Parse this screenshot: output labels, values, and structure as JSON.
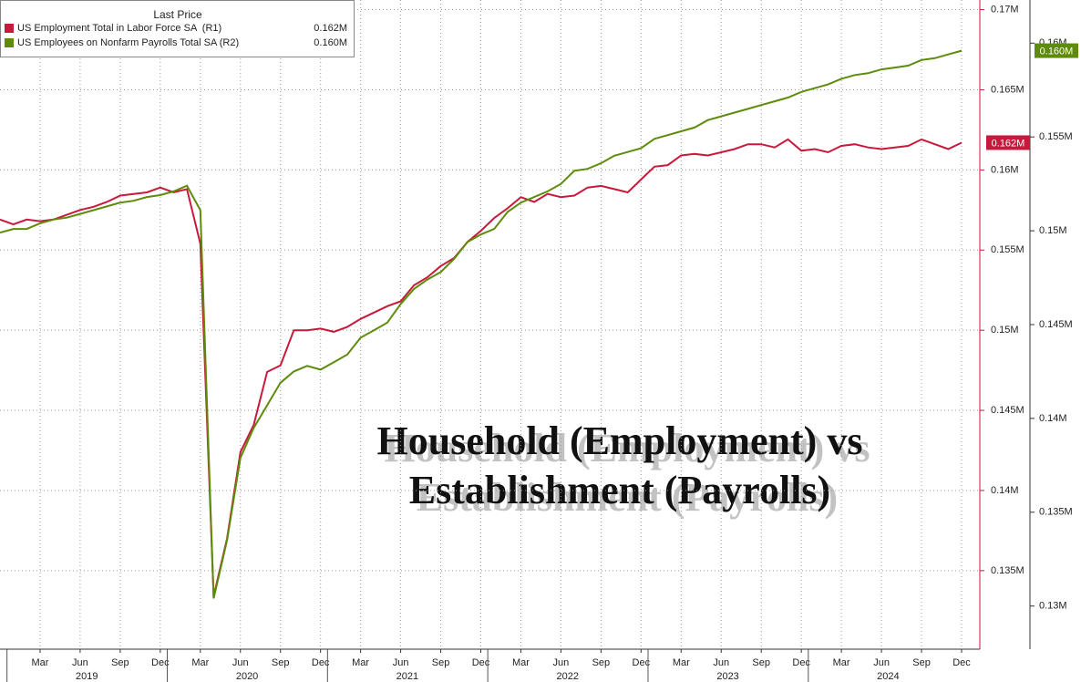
{
  "chart_data": {
    "type": "line",
    "legend_title": "Last Price",
    "annotation": [
      "Household (Employment) vs",
      "Establishment (Payrolls)"
    ],
    "x": [
      "2018-12",
      "2019-01",
      "2019-02",
      "2019-03",
      "2019-04",
      "2019-05",
      "2019-06",
      "2019-07",
      "2019-08",
      "2019-09",
      "2019-10",
      "2019-11",
      "2019-12",
      "2020-01",
      "2020-02",
      "2020-03",
      "2020-04",
      "2020-05",
      "2020-06",
      "2020-07",
      "2020-08",
      "2020-09",
      "2020-10",
      "2020-11",
      "2020-12",
      "2021-01",
      "2021-02",
      "2021-03",
      "2021-04",
      "2021-05",
      "2021-06",
      "2021-07",
      "2021-08",
      "2021-09",
      "2021-10",
      "2021-11",
      "2021-12",
      "2022-01",
      "2022-02",
      "2022-03",
      "2022-04",
      "2022-05",
      "2022-06",
      "2022-07",
      "2022-08",
      "2022-09",
      "2022-10",
      "2022-11",
      "2022-12",
      "2023-01",
      "2023-02",
      "2023-03",
      "2023-04",
      "2023-05",
      "2023-06",
      "2023-07",
      "2023-08",
      "2023-09",
      "2023-10",
      "2023-11",
      "2023-12",
      "2024-01",
      "2024-02",
      "2024-03",
      "2024-04",
      "2024-05",
      "2024-06",
      "2024-07",
      "2024-08",
      "2024-09",
      "2024-10",
      "2024-11",
      "2024-12"
    ],
    "xticks": [
      {
        "value": "2019-03",
        "label": "Mar"
      },
      {
        "value": "2019-06",
        "label": "Jun"
      },
      {
        "value": "2019-09",
        "label": "Sep"
      },
      {
        "value": "2019-12",
        "label": "Dec"
      },
      {
        "value": "2020-03",
        "label": "Mar"
      },
      {
        "value": "2020-06",
        "label": "Jun"
      },
      {
        "value": "2020-09",
        "label": "Sep"
      },
      {
        "value": "2020-12",
        "label": "Dec"
      },
      {
        "value": "2021-03",
        "label": "Mar"
      },
      {
        "value": "2021-06",
        "label": "Jun"
      },
      {
        "value": "2021-09",
        "label": "Sep"
      },
      {
        "value": "2021-12",
        "label": "Dec"
      },
      {
        "value": "2022-03",
        "label": "Mar"
      },
      {
        "value": "2022-06",
        "label": "Jun"
      },
      {
        "value": "2022-09",
        "label": "Sep"
      },
      {
        "value": "2022-12",
        "label": "Dec"
      },
      {
        "value": "2023-03",
        "label": "Mar"
      },
      {
        "value": "2023-06",
        "label": "Jun"
      },
      {
        "value": "2023-09",
        "label": "Sep"
      },
      {
        "value": "2023-12",
        "label": "Dec"
      },
      {
        "value": "2024-03",
        "label": "Mar"
      },
      {
        "value": "2024-06",
        "label": "Jun"
      },
      {
        "value": "2024-09",
        "label": "Sep"
      },
      {
        "value": "2024-12",
        "label": "Dec"
      }
    ],
    "years": [
      "2019",
      "2020",
      "2021",
      "2022",
      "2023",
      "2024"
    ],
    "ylim": [
      0.1301,
      0.1706
    ],
    "yticks": [
      {
        "value": 0.135,
        "label": "0.135M"
      },
      {
        "value": 0.14,
        "label": "0.14M"
      },
      {
        "value": 0.145,
        "label": "0.145M"
      },
      {
        "value": 0.15,
        "label": "0.15M"
      },
      {
        "value": 0.155,
        "label": "0.155M"
      },
      {
        "value": 0.16,
        "label": "0.16M"
      },
      {
        "value": 0.165,
        "label": "0.165M"
      },
      {
        "value": 0.17,
        "label": "0.17M"
      }
    ],
    "y2lim": [
      0.1277,
      0.1623
    ],
    "y2ticks": [
      {
        "value": 0.13,
        "label": "0.13M"
      },
      {
        "value": 0.135,
        "label": "0.135M"
      },
      {
        "value": 0.14,
        "label": "0.14M"
      },
      {
        "value": 0.145,
        "label": "0.145M"
      },
      {
        "value": 0.15,
        "label": "0.15M"
      },
      {
        "value": 0.155,
        "label": "0.155M"
      },
      {
        "value": 0.16,
        "label": "0.16M"
      }
    ],
    "grid": true,
    "legend": "upper left",
    "series": [
      {
        "name": "US Employment Total in Labor Force SA  (R1)",
        "color": "#c8193c",
        "axis": "y",
        "last_value_label": "0.162M",
        "values": [
          0.1569,
          0.1566,
          0.1569,
          0.1568,
          0.1569,
          0.1572,
          0.1575,
          0.1577,
          0.158,
          0.1584,
          0.1585,
          0.1586,
          0.1589,
          0.1586,
          0.1588,
          0.1554,
          0.1334,
          0.137,
          0.1424,
          0.1441,
          0.1474,
          0.1478,
          0.15,
          0.15,
          0.1501,
          0.1499,
          0.1502,
          0.1507,
          0.1511,
          0.1515,
          0.1518,
          0.1528,
          0.1533,
          0.154,
          0.1545,
          0.1555,
          0.1562,
          0.157,
          0.1576,
          0.1583,
          0.158,
          0.1585,
          0.1583,
          0.1584,
          0.1589,
          0.159,
          0.1588,
          0.1586,
          0.1594,
          0.1602,
          0.1603,
          0.1609,
          0.161,
          0.1609,
          0.1611,
          0.1613,
          0.1616,
          0.1616,
          0.1614,
          0.1619,
          0.1612,
          0.1613,
          0.1611,
          0.1615,
          0.1616,
          0.1614,
          0.1613,
          0.1614,
          0.1615,
          0.1619,
          0.1616,
          0.1613,
          0.1617
        ]
      },
      {
        "name": "US Employees on Nonfarm Payrolls Total SA (R2)",
        "color": "#5e8c0a",
        "axis": "y2",
        "last_value_label": "0.160M",
        "values": [
          0.1499,
          0.1501,
          0.1501,
          0.1504,
          0.1506,
          0.1507,
          0.1509,
          0.1511,
          0.1513,
          0.1515,
          0.1516,
          0.1518,
          0.1519,
          0.1521,
          0.1524,
          0.1511,
          0.1304,
          0.1335,
          0.1379,
          0.1395,
          0.1407,
          0.1419,
          0.1425,
          0.1428,
          0.1426,
          0.143,
          0.1434,
          0.1443,
          0.1447,
          0.1451,
          0.1461,
          0.1469,
          0.1474,
          0.1478,
          0.1485,
          0.1494,
          0.1498,
          0.1501,
          0.151,
          0.1515,
          0.1518,
          0.1521,
          0.1525,
          0.1532,
          0.1533,
          0.1536,
          0.154,
          0.1542,
          0.1544,
          0.1549,
          0.1551,
          0.1553,
          0.1555,
          0.1559,
          0.1561,
          0.1563,
          0.1565,
          0.1567,
          0.1569,
          0.1571,
          0.1574,
          0.1576,
          0.1578,
          0.1581,
          0.1583,
          0.1584,
          0.1586,
          0.1587,
          0.1588,
          0.1591,
          0.1592,
          0.1594,
          0.1596
        ]
      }
    ]
  }
}
